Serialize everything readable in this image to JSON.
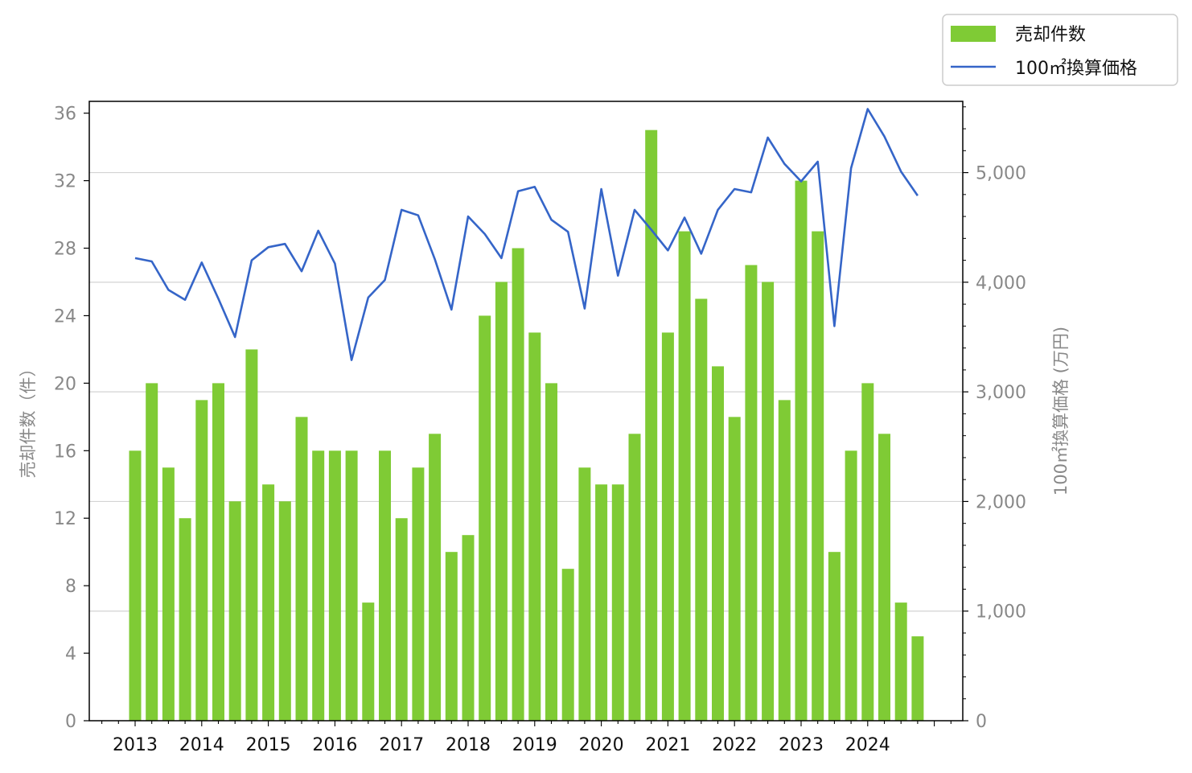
{
  "colors": {
    "bar": "#7fcb35",
    "line": "#3565c8",
    "grid": "#d3d3d3",
    "axis_text": "#888888",
    "frame": "#000000"
  },
  "legend": {
    "placement": "top-right outside",
    "bar_label": "売却件数",
    "line_label": "100㎡換算価格"
  },
  "chart_data": {
    "type": "bar+line",
    "title": "",
    "xlabel": "",
    "y_left_label": "売却件数（件）",
    "y_right_label": "100㎡換算価格 (万円)",
    "y_left_lim": [
      0,
      36.7
    ],
    "y_left_ticks": [
      "0",
      "4",
      "8",
      "12",
      "16",
      "20",
      "24",
      "28",
      "32",
      "36"
    ],
    "y_right_lim": [
      0,
      5650
    ],
    "y_right_ticks": [
      "0",
      "1,000",
      "2,000",
      "3,000",
      "4,000",
      "5,000"
    ],
    "grid": "horizontal, right axis",
    "x_year_labels": [
      "2013",
      "2014",
      "2015",
      "2016",
      "2017",
      "2018",
      "2019",
      "2020",
      "2021",
      "2022",
      "2023",
      "2024"
    ],
    "x_quarters": [
      "2013Q1",
      "2013Q2",
      "2013Q3",
      "2013Q4",
      "2014Q1",
      "2014Q2",
      "2014Q3",
      "2014Q4",
      "2015Q1",
      "2015Q2",
      "2015Q3",
      "2015Q4",
      "2016Q1",
      "2016Q2",
      "2016Q3",
      "2016Q4",
      "2017Q1",
      "2017Q2",
      "2017Q3",
      "2017Q4",
      "2018Q1",
      "2018Q2",
      "2018Q3",
      "2018Q4",
      "2019Q1",
      "2019Q2",
      "2019Q3",
      "2019Q4",
      "2020Q1",
      "2020Q2",
      "2020Q3",
      "2020Q4",
      "2021Q1",
      "2021Q2",
      "2021Q3",
      "2021Q4",
      "2022Q1",
      "2022Q2",
      "2022Q3",
      "2022Q4",
      "2023Q1",
      "2023Q2",
      "2023Q3",
      "2023Q4",
      "2024Q1",
      "2024Q2",
      "2024Q3",
      "2024Q4"
    ],
    "series": [
      {
        "name": "売却件数",
        "type": "bar",
        "axis": "left",
        "values": [
          16,
          20,
          15,
          12,
          19,
          20,
          13,
          22,
          14,
          13,
          18,
          16,
          16,
          16,
          7,
          16,
          12,
          15,
          17,
          10,
          11,
          24,
          26,
          28,
          23,
          20,
          9,
          15,
          14,
          14,
          17,
          35,
          23,
          29,
          25,
          21,
          18,
          27,
          26,
          19,
          32,
          29,
          10,
          16,
          20,
          17,
          7,
          5
        ]
      },
      {
        "name": "100㎡換算価格",
        "type": "line",
        "axis": "right",
        "values": [
          4220,
          4190,
          3930,
          3840,
          4180,
          3850,
          3500,
          4200,
          4320,
          4350,
          4100,
          4470,
          4170,
          3290,
          3860,
          4020,
          4660,
          4610,
          4210,
          3750,
          4600,
          4440,
          4220,
          4830,
          4870,
          4570,
          4460,
          3760,
          4850,
          4060,
          4660,
          4480,
          4290,
          4590,
          4260,
          4660,
          4850,
          4820,
          5320,
          5080,
          4920,
          5100,
          3600,
          5040,
          5580,
          5330,
          5010,
          4790
        ]
      }
    ]
  }
}
